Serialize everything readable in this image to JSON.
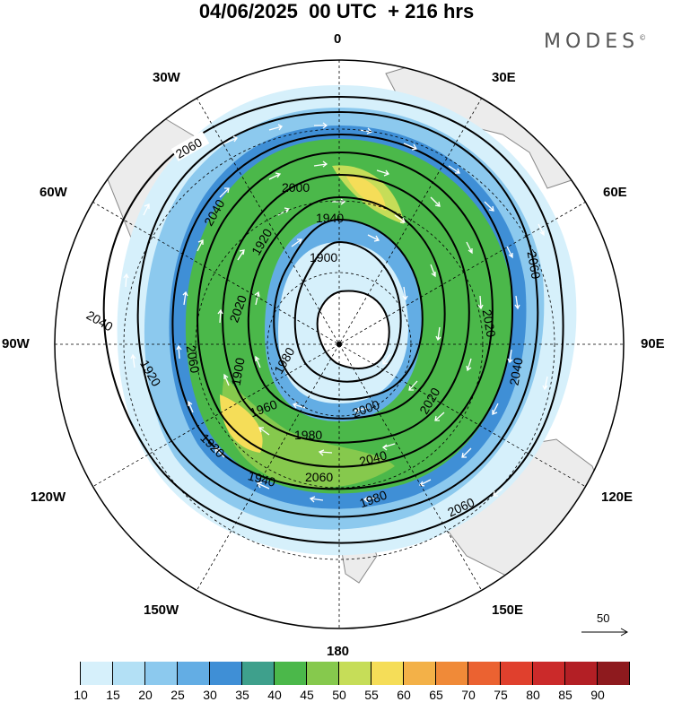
{
  "title": "04/06/2025  00 UTC  + 216 hrs",
  "brand": "MODES",
  "brand_mark": "©",
  "axis_labels": {
    "lon_0": "0",
    "lon_30e": "30E",
    "lon_60e": "60E",
    "lon_90e": "90E",
    "lon_120e": "120E",
    "lon_150e": "150E",
    "lon_180": "180",
    "lon_150w": "150W",
    "lon_120w": "120W",
    "lon_90w": "90W",
    "lon_60w": "60W",
    "lon_30w": "30W"
  },
  "contour_labels": [
    "2060",
    "2040",
    "2000",
    "1940",
    "1920",
    "1900",
    "1960",
    "1980",
    "2020",
    "2060",
    "2040",
    "1920",
    "1900",
    "1960",
    "1980",
    "2000",
    "2020",
    "2040",
    "2060",
    "1940",
    "1920",
    "1980",
    "2060",
    "2020",
    "2040",
    "2060"
  ],
  "vector_reference": {
    "value": "50"
  },
  "colorbar": {
    "colors": [
      "#ffffff",
      "#d6f0fb",
      "#b3e0f5",
      "#8cc9ee",
      "#63ade4",
      "#3f8fd6",
      "#3ea08c",
      "#4bb84a",
      "#86c94d",
      "#c6dd58",
      "#f5dd58",
      "#f3b148",
      "#f08a38",
      "#eb6231",
      "#e0402d",
      "#cb2a2a",
      "#b31f25",
      "#8e1a1e"
    ],
    "ticks": [
      "10",
      "15",
      "20",
      "25",
      "30",
      "35",
      "40",
      "45",
      "50",
      "55",
      "60",
      "65",
      "70",
      "75",
      "80",
      "85",
      "90"
    ]
  }
}
